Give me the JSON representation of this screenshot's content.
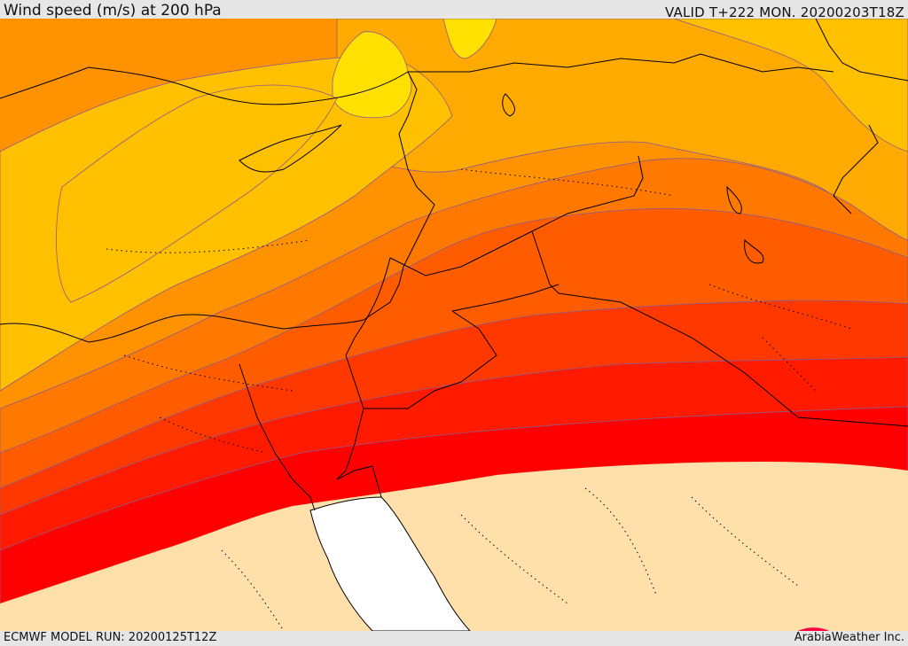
{
  "header": {
    "title": "Wind speed (m/s) at 200 hPa",
    "valid": "VALID T+222 MON. 20200203T18Z"
  },
  "footer": {
    "model_run": "ECMWF MODEL RUN: 20200125T12Z",
    "credit": "ArabiaWeather Inc."
  },
  "colors": {
    "band_lightest": "#FFE000",
    "band_1": "#FFC000",
    "band_2": "#FFAA00",
    "band_3": "#FF9200",
    "band_4": "#FF7800",
    "band_5": "#FF5C00",
    "band_6": "#FF3800",
    "band_7": "#FF1A00",
    "band_8": "#FF0000",
    "land": "#FFE0AA",
    "sea": "#FFFFFF",
    "contour": "#8C5A8C",
    "border": "#000000"
  }
}
